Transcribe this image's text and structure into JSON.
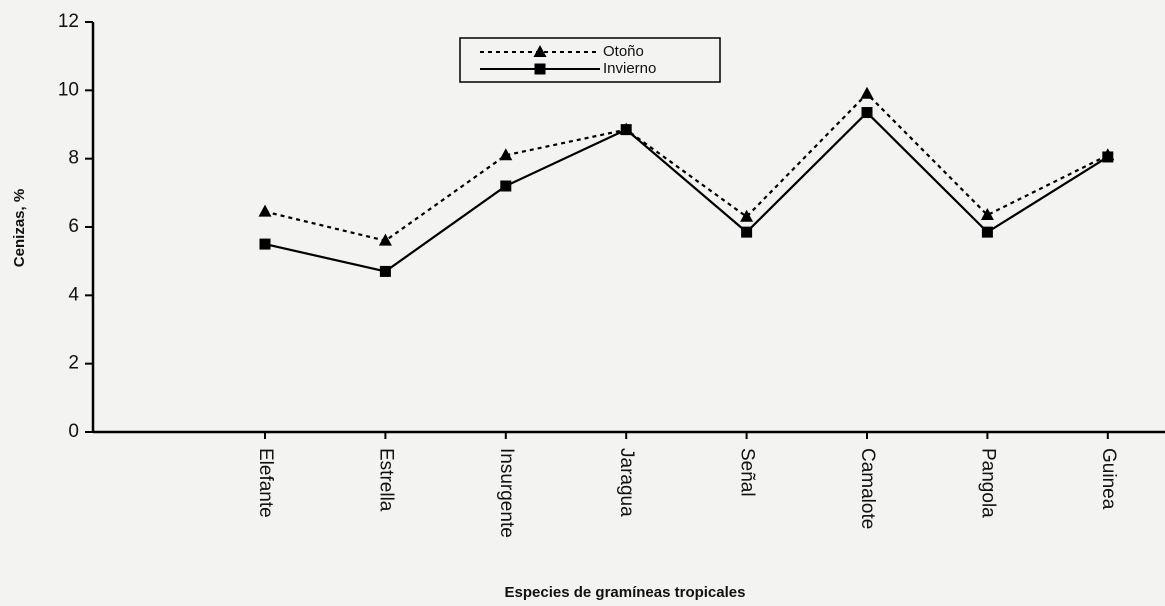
{
  "chart_data": {
    "type": "line",
    "categories": [
      "Elefante",
      "Estrella",
      "Insurgente",
      "Jaragua",
      "Señal",
      "Camalote",
      "Pangola",
      "Guinea"
    ],
    "series": [
      {
        "name": "Otoño",
        "color": "#000000",
        "marker": "triangle",
        "line_style": "dashed",
        "values": [
          6.45,
          5.6,
          8.1,
          8.85,
          6.3,
          9.9,
          6.35,
          8.1
        ]
      },
      {
        "name": "Invierno",
        "color": "#000000",
        "marker": "square",
        "line_style": "solid",
        "values": [
          5.5,
          4.7,
          7.2,
          8.85,
          5.85,
          9.35,
          5.85,
          8.05
        ]
      }
    ],
    "ylim": [
      0,
      12
    ],
    "yticks": [
      0,
      2,
      4,
      6,
      8,
      10,
      12
    ],
    "y_label": "Cenizas, %",
    "x_label": "Especies de gramíneas tropicales",
    "legend": "top"
  }
}
